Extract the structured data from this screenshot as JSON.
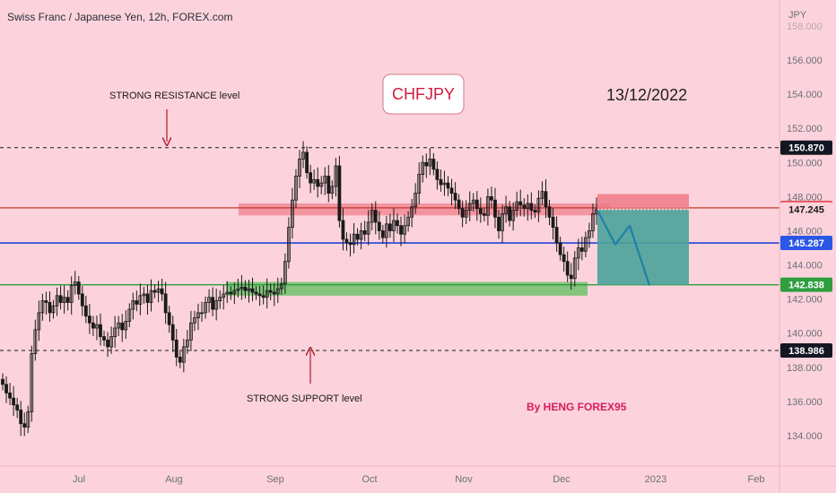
{
  "header": {
    "symbol_title": "Swiss Franc / Japanese Yen, 12h, FOREX.com"
  },
  "currency_label": "JPY",
  "colors": {
    "background": "#fcd3dc",
    "resistance_line": "#c0392b",
    "support_line": "#2e9e3e",
    "current_line": "#2144d6",
    "candle": "#1a1a1a",
    "stop_zone": "#ef7a86",
    "target_zone": "#4aa39a",
    "projection": "#1f7fa8",
    "author": "#d81b60"
  },
  "annotations": {
    "resistance_text": "STRONG RESISTANCE level",
    "support_text": "STRONG SUPPORT level",
    "pair_badge": "CHFJPY",
    "date": "13/12/2022",
    "author": "By HENG FOREX95"
  },
  "chart_data": {
    "type": "candlestick",
    "title": "Swiss Franc / Japanese Yen, 12h, FOREX.com",
    "ylabel": "JPY",
    "ylim": [
      133.2,
      159.2
    ],
    "y_ticks": [
      "158.000",
      "156.000",
      "154.000",
      "152.000",
      "150.000",
      "148.000",
      "146.000",
      "144.000",
      "142.000",
      "140.000",
      "138.000",
      "136.000",
      "134.000"
    ],
    "x_ticks": [
      "Jul",
      "Aug",
      "Sep",
      "Oct",
      "Nov",
      "Dec",
      "2023",
      "Feb"
    ],
    "price_levels": [
      {
        "value": "150.870",
        "style": "dashed"
      },
      {
        "value": "147.342",
        "style": "stop"
      },
      {
        "value": "147.245",
        "style": "current"
      },
      {
        "value": "145.287",
        "style": "blue"
      },
      {
        "value": "142.838",
        "style": "target"
      },
      {
        "value": "138.986",
        "style": "dashed"
      }
    ],
    "horizontal_lines": [
      {
        "price": 150.87,
        "style": "dashed"
      },
      {
        "price": 147.342,
        "style": "solid-red"
      },
      {
        "price": 145.287,
        "style": "solid-blue"
      },
      {
        "price": 142.838,
        "style": "solid-green"
      },
      {
        "price": 138.986,
        "style": "dashed"
      }
    ],
    "zones": [
      {
        "name": "resistance",
        "low": 146.9,
        "high": 147.6
      },
      {
        "name": "support",
        "low": 142.2,
        "high": 143.0
      }
    ],
    "trade": {
      "entry": 147.245,
      "stop": 148.15,
      "target": 142.838
    },
    "projection_path": [
      147.2,
      145.2,
      146.3,
      142.8
    ],
    "closes": [
      137.0,
      136.5,
      136.2,
      135.8,
      135.5,
      134.7,
      134.5,
      135.4,
      138.8,
      140.2,
      141.2,
      141.9,
      141.8,
      141.2,
      141.6,
      142.2,
      141.8,
      142.1,
      141.8,
      142.8,
      143.0,
      142.3,
      141.6,
      141.0,
      140.6,
      140.3,
      140.5,
      139.8,
      139.6,
      139.2,
      139.8,
      140.3,
      140.6,
      140.2,
      140.7,
      141.4,
      141.9,
      141.7,
      142.2,
      142.3,
      141.8,
      142.5,
      142.4,
      142.6,
      142.3,
      141.2,
      140.5,
      139.6,
      138.6,
      138.3,
      139.2,
      139.6,
      140.6,
      140.9,
      141.2,
      141.2,
      141.8,
      142.1,
      141.4,
      141.9,
      142.1,
      142.3,
      142.4,
      142.3,
      142.5,
      142.6,
      142.7,
      142.5,
      142.6,
      142.4,
      142.3,
      142.2,
      142.1,
      142.5,
      142.4,
      142.3,
      142.6,
      142.9,
      144.2,
      146.2,
      147.8,
      149.2,
      150.2,
      150.6,
      149.4,
      148.8,
      149.0,
      148.6,
      148.8,
      149.2,
      148.2,
      148.6,
      149.8,
      146.6,
      145.5,
      145.3,
      145.2,
      145.8,
      145.5,
      146.0,
      145.8,
      146.5,
      147.2,
      146.5,
      146.0,
      145.6,
      146.4,
      146.0,
      146.6,
      146.3,
      145.8,
      146.3,
      146.8,
      147.4,
      148.2,
      149.3,
      150.0,
      149.8,
      150.2,
      149.6,
      149.0,
      148.7,
      148.8,
      148.5,
      148.2,
      147.8,
      147.3,
      146.8,
      147.2,
      147.6,
      147.8,
      147.3,
      147.0,
      146.9,
      148.0,
      147.8,
      146.8,
      146.0,
      147.0,
      147.4,
      146.6,
      147.2,
      147.7,
      147.5,
      147.3,
      147.6,
      147.2,
      147.1,
      147.9,
      148.3,
      147.4,
      146.8,
      146.2,
      145.3,
      144.6,
      144.2,
      143.4,
      143.2,
      144.4,
      145.0,
      144.8,
      145.6,
      146.0,
      147.0,
      147.245
    ]
  }
}
